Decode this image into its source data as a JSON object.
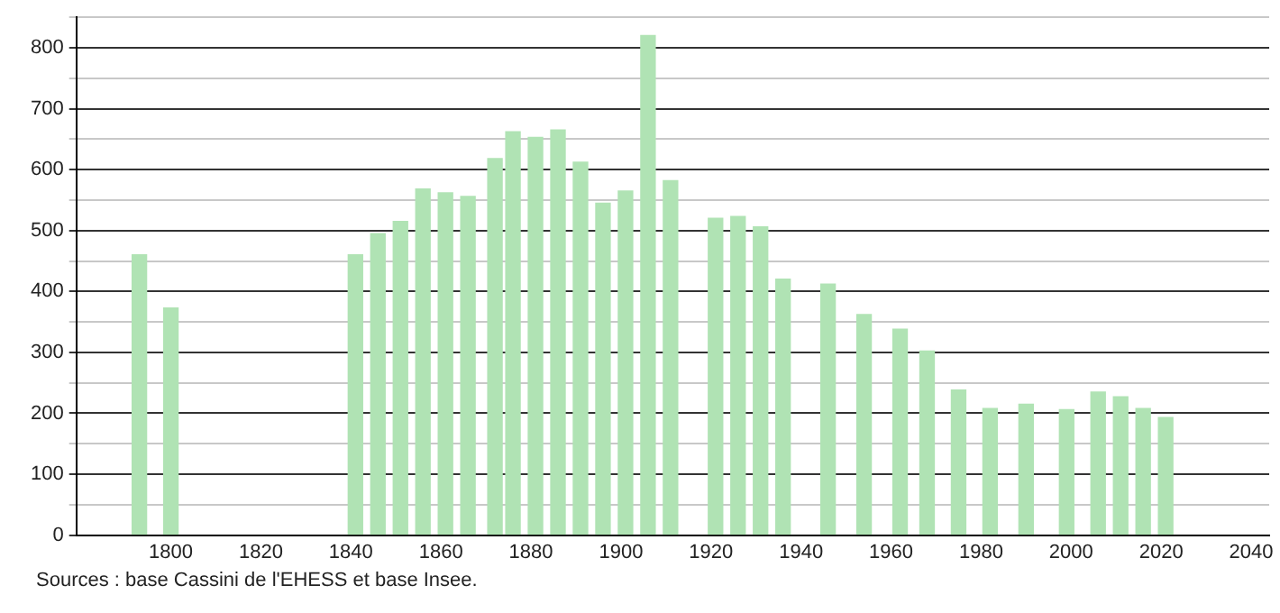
{
  "chart_data": {
    "type": "bar",
    "x": [
      1793,
      1800,
      1841,
      1846,
      1851,
      1856,
      1861,
      1866,
      1872,
      1876,
      1881,
      1886,
      1891,
      1896,
      1901,
      1906,
      1911,
      1921,
      1926,
      1931,
      1936,
      1946,
      1954,
      1962,
      1968,
      1975,
      1982,
      1990,
      1999,
      2006,
      2011,
      2016,
      2021
    ],
    "values": [
      460,
      373,
      460,
      495,
      515,
      568,
      562,
      556,
      618,
      662,
      653,
      665,
      612,
      545,
      565,
      820,
      582,
      520,
      523,
      506,
      420,
      412,
      362,
      338,
      302,
      238,
      208,
      215,
      206,
      235,
      227,
      208,
      193
    ],
    "color": "#b0e3b4",
    "xlim": [
      1779,
      2044
    ],
    "xticks": [
      1800,
      1820,
      1840,
      1860,
      1880,
      1900,
      1920,
      1940,
      1960,
      1980,
      2000,
      2020,
      2040
    ],
    "ylim": [
      0,
      850
    ],
    "yticks": [
      0,
      {
        "value": 50,
        "label": null
      },
      100,
      {
        "value": 150,
        "label": null
      },
      200,
      {
        "value": 250,
        "label": null
      },
      300,
      {
        "value": 350,
        "label": null
      },
      400,
      {
        "value": 450,
        "label": null
      },
      500,
      {
        "value": 550,
        "label": null
      },
      600,
      {
        "value": 650,
        "label": null
      },
      700,
      {
        "value": 750,
        "label": null
      },
      800,
      {
        "value": 850,
        "label": null
      }
    ],
    "grid": "y",
    "legend": false,
    "annotations": [
      "Sources : base Cassini de l'EHESS et base Insee."
    ]
  }
}
